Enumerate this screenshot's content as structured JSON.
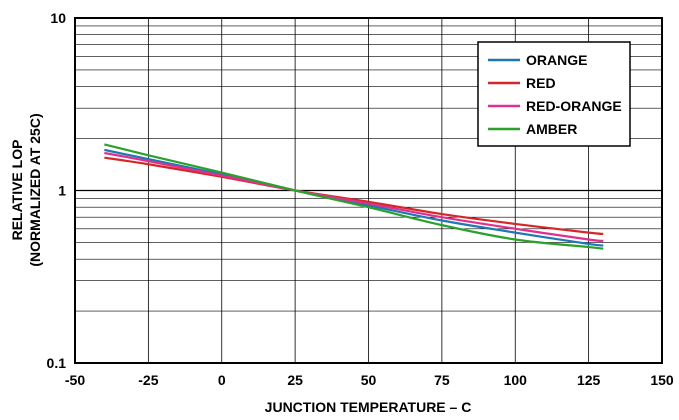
{
  "chart_data": {
    "type": "line",
    "xlabel": "JUNCTION TEMPERATURE – C",
    "ylabel_line1": "RELATIVE LOP",
    "ylabel_line2": "(NORMALIZED AT 25C)",
    "x_ticks": [
      "-50",
      "-25",
      "0",
      "25",
      "50",
      "75",
      "100",
      "125",
      "150"
    ],
    "y_ticks": [
      "0.1",
      "1",
      "10"
    ],
    "xlim": [
      -50,
      150
    ],
    "ylim": [
      0.1,
      10
    ],
    "y_scale": "log",
    "grid": true,
    "legend_position": "top-right",
    "series": [
      {
        "name": "ORANGE",
        "color": "#1f77b4",
        "x": [
          -40,
          -25,
          0,
          25,
          50,
          75,
          100,
          125,
          130
        ],
        "y": [
          1.72,
          1.52,
          1.24,
          1.0,
          0.82,
          0.67,
          0.57,
          0.49,
          0.48
        ]
      },
      {
        "name": "RED",
        "color": "#d62728",
        "x": [
          -40,
          -25,
          0,
          25,
          50,
          75,
          100,
          125,
          130
        ],
        "y": [
          1.55,
          1.42,
          1.2,
          1.0,
          0.86,
          0.73,
          0.64,
          0.57,
          0.56
        ]
      },
      {
        "name": "RED-ORANGE",
        "color": "#e0308f",
        "x": [
          -40,
          -25,
          0,
          25,
          50,
          75,
          100,
          125,
          130
        ],
        "y": [
          1.65,
          1.48,
          1.22,
          1.0,
          0.84,
          0.7,
          0.6,
          0.52,
          0.51
        ]
      },
      {
        "name": "AMBER",
        "color": "#2ca02c",
        "x": [
          -40,
          -25,
          0,
          25,
          50,
          75,
          100,
          125,
          130
        ],
        "y": [
          1.85,
          1.6,
          1.27,
          1.0,
          0.8,
          0.63,
          0.52,
          0.47,
          0.46
        ]
      }
    ]
  }
}
